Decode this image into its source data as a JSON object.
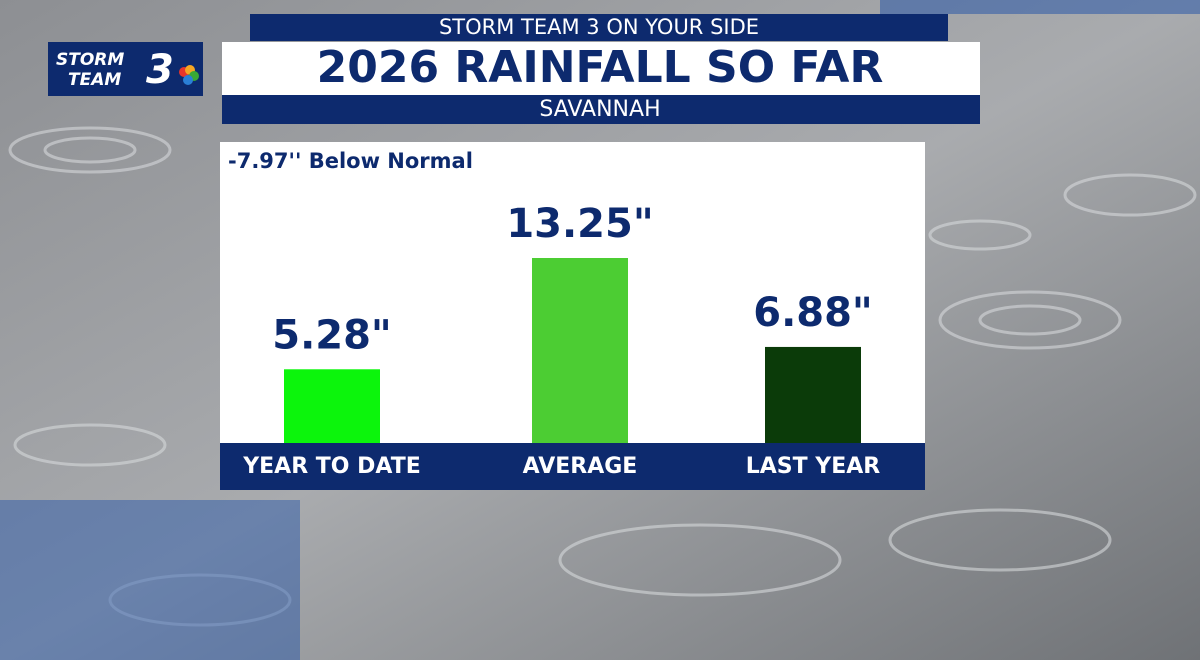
{
  "header": "STORM TEAM 3 ON YOUR SIDE",
  "logo": {
    "line1": "STORM",
    "line2": "TEAM",
    "number": "3"
  },
  "chart_data": {
    "type": "bar",
    "title": "2026 RAINFALL SO FAR",
    "subtitle": "SAVANNAH",
    "annotation": "-7.97'' Below Normal",
    "categories": [
      "YEAR TO DATE",
      "AVERAGE",
      "LAST YEAR"
    ],
    "values": [
      5.28,
      13.25,
      6.88
    ],
    "value_labels": [
      "5.28\"",
      "13.25\"",
      "6.88\""
    ],
    "colors": [
      "#0cf50c",
      "#4ccd33",
      "#0b3b09"
    ]
  }
}
